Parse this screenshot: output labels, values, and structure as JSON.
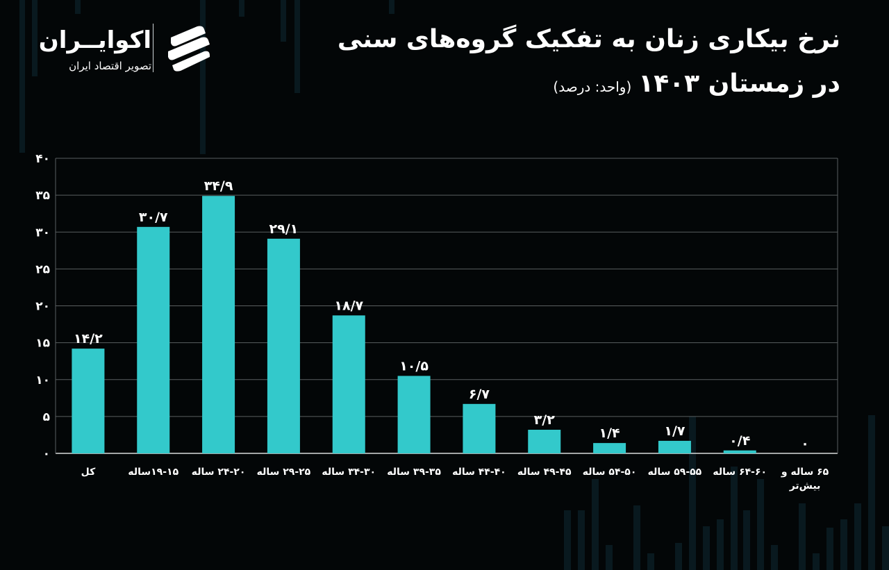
{
  "title": "نرخ بیکاری زنان به تفکیک گروه‌های سنی",
  "subtitle": "در زمستان ۱۴۰۳",
  "unit_note": "(واحد: درصد)",
  "logo": {
    "name": "اکوایــران",
    "tagline": "تصویر اقتصاد ایران"
  },
  "colors": {
    "background": "#030607",
    "bar": "#33c9cb",
    "grid": "#5a5f60",
    "text": "#ffffff",
    "decor": "#0e2a33"
  },
  "chart_data": {
    "type": "bar",
    "categories": [
      "کل",
      "۱۹-۱۵ساله",
      "۲۴-۲۰ ساله",
      "۲۹-۲۵ ساله",
      "۳۴-۳۰ ساله",
      "۳۹-۳۵ ساله",
      "۴۴-۴۰ ساله",
      "۴۹-۴۵ ساله",
      "۵۴-۵۰ ساله",
      "۵۹-۵۵ ساله",
      "۶۴-۶۰ ساله",
      "۶۵ ساله و\nبیش‌تر"
    ],
    "values": [
      14.2,
      30.7,
      34.9,
      29.1,
      18.7,
      10.5,
      6.7,
      3.2,
      1.4,
      1.7,
      0.4,
      0
    ],
    "value_labels": [
      "۱۴/۲",
      "۳۰/۷",
      "۳۴/۹",
      "۲۹/۱",
      "۱۸/۷",
      "۱۰/۵",
      "۶/۷",
      "۳/۲",
      "۱/۴",
      "۱/۷",
      "۰/۴",
      "۰"
    ],
    "yticks": [
      0,
      5,
      10,
      15,
      20,
      25,
      30,
      35,
      40
    ],
    "ytick_labels": [
      "۰",
      "۵",
      "۱۰",
      "۱۵",
      "۲۰",
      "۲۵",
      "۳۰",
      "۳۵",
      "۴۰"
    ],
    "ylim": [
      0,
      40
    ],
    "grid": true
  }
}
